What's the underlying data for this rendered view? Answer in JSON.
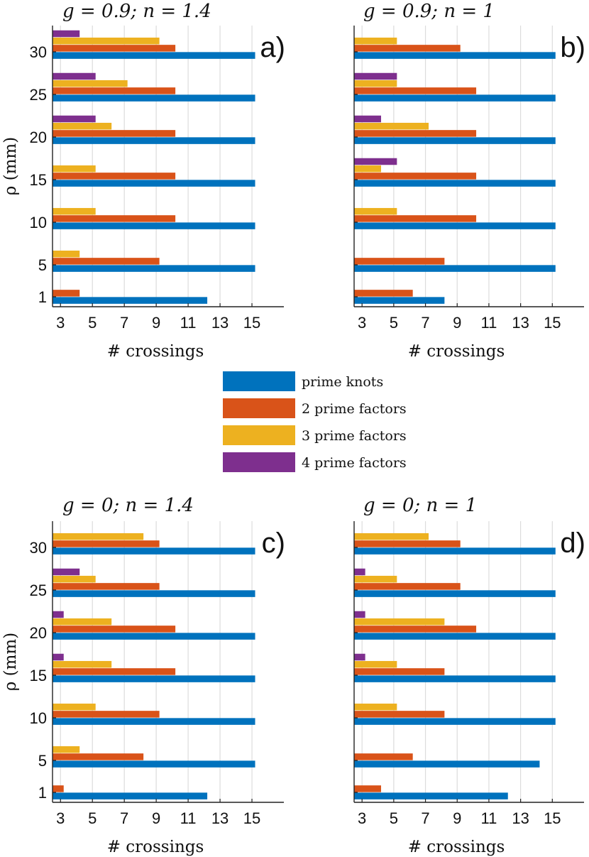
{
  "legend": {
    "entries": [
      {
        "key": "prime",
        "label": "prime knots",
        "color": "#0072BD"
      },
      {
        "key": "two",
        "label": "2 prime factors",
        "color": "#D95319"
      },
      {
        "key": "three",
        "label": "3 prime factors",
        "color": "#EDB120"
      },
      {
        "key": "four",
        "label": "4 prime factors",
        "color": "#7E2F8E"
      }
    ]
  },
  "chart_data": [
    {
      "type": "bar",
      "orientation": "horizontal",
      "panel_label": "a)",
      "title": "g = 0.9; n = 1.4",
      "xlabel": "# crossings",
      "ylabel": "ρ (mm)",
      "xlim": [
        2.5,
        17
      ],
      "x_ticks": [
        "3",
        "5",
        "7",
        "9",
        "11",
        "13",
        "15"
      ],
      "categories": [
        "1",
        "5",
        "10",
        "15",
        "20",
        "25",
        "30"
      ],
      "grid": true,
      "series": [
        {
          "name": "prime knots",
          "values": [
            12,
            15,
            15,
            15,
            15,
            15,
            15
          ]
        },
        {
          "name": "2 prime factors",
          "values": [
            4,
            9,
            10,
            10,
            10,
            10,
            10
          ]
        },
        {
          "name": "3 prime factors",
          "values": [
            null,
            4,
            5,
            5,
            6,
            7,
            9
          ]
        },
        {
          "name": "4 prime factors",
          "values": [
            null,
            null,
            null,
            null,
            5,
            5,
            4
          ]
        }
      ]
    },
    {
      "type": "bar",
      "orientation": "horizontal",
      "panel_label": "b)",
      "title": "g = 0.9; n = 1",
      "xlabel": "# crossings",
      "ylabel": "",
      "xlim": [
        2.5,
        17
      ],
      "x_ticks": [
        "3",
        "5",
        "7",
        "9",
        "11",
        "13",
        "15"
      ],
      "categories": [
        "1",
        "5",
        "10",
        "15",
        "20",
        "25",
        "30"
      ],
      "grid": true,
      "series": [
        {
          "name": "prime knots",
          "values": [
            8,
            15,
            15,
            15,
            15,
            15,
            15
          ]
        },
        {
          "name": "2 prime factors",
          "values": [
            6,
            8,
            10,
            10,
            10,
            10,
            9
          ]
        },
        {
          "name": "3 prime factors",
          "values": [
            null,
            null,
            5,
            4,
            7,
            5,
            5
          ]
        },
        {
          "name": "4 prime factors",
          "values": [
            null,
            null,
            null,
            5,
            4,
            5,
            null
          ]
        }
      ]
    },
    {
      "type": "bar",
      "orientation": "horizontal",
      "panel_label": "c)",
      "title": "g = 0; n = 1.4",
      "xlabel": "# crossings",
      "ylabel": "ρ (mm)",
      "xlim": [
        2.5,
        17
      ],
      "x_ticks": [
        "3",
        "5",
        "7",
        "9",
        "11",
        "13",
        "15"
      ],
      "categories": [
        "1",
        "5",
        "10",
        "15",
        "20",
        "25",
        "30"
      ],
      "grid": true,
      "series": [
        {
          "name": "prime knots",
          "values": [
            12,
            15,
            15,
            15,
            15,
            15,
            15
          ]
        },
        {
          "name": "2 prime factors",
          "values": [
            3,
            8,
            9,
            10,
            10,
            9,
            9
          ]
        },
        {
          "name": "3 prime factors",
          "values": [
            null,
            4,
            5,
            6,
            6,
            5,
            8
          ]
        },
        {
          "name": "4 prime factors",
          "values": [
            null,
            null,
            null,
            3,
            3,
            4,
            null
          ]
        }
      ]
    },
    {
      "type": "bar",
      "orientation": "horizontal",
      "panel_label": "d)",
      "title": "g = 0; n = 1",
      "xlabel": "# crossings",
      "ylabel": "",
      "xlim": [
        2.5,
        17
      ],
      "x_ticks": [
        "3",
        "5",
        "7",
        "9",
        "11",
        "13",
        "15"
      ],
      "categories": [
        "1",
        "5",
        "10",
        "15",
        "20",
        "25",
        "30"
      ],
      "grid": true,
      "series": [
        {
          "name": "prime knots",
          "values": [
            12,
            14,
            15,
            15,
            15,
            15,
            15
          ]
        },
        {
          "name": "2 prime factors",
          "values": [
            4,
            6,
            8,
            8,
            10,
            9,
            9
          ]
        },
        {
          "name": "3 prime factors",
          "values": [
            null,
            null,
            5,
            5,
            8,
            5,
            7
          ]
        },
        {
          "name": "4 prime factors",
          "values": [
            null,
            null,
            null,
            3,
            3,
            3,
            null
          ]
        }
      ]
    }
  ]
}
